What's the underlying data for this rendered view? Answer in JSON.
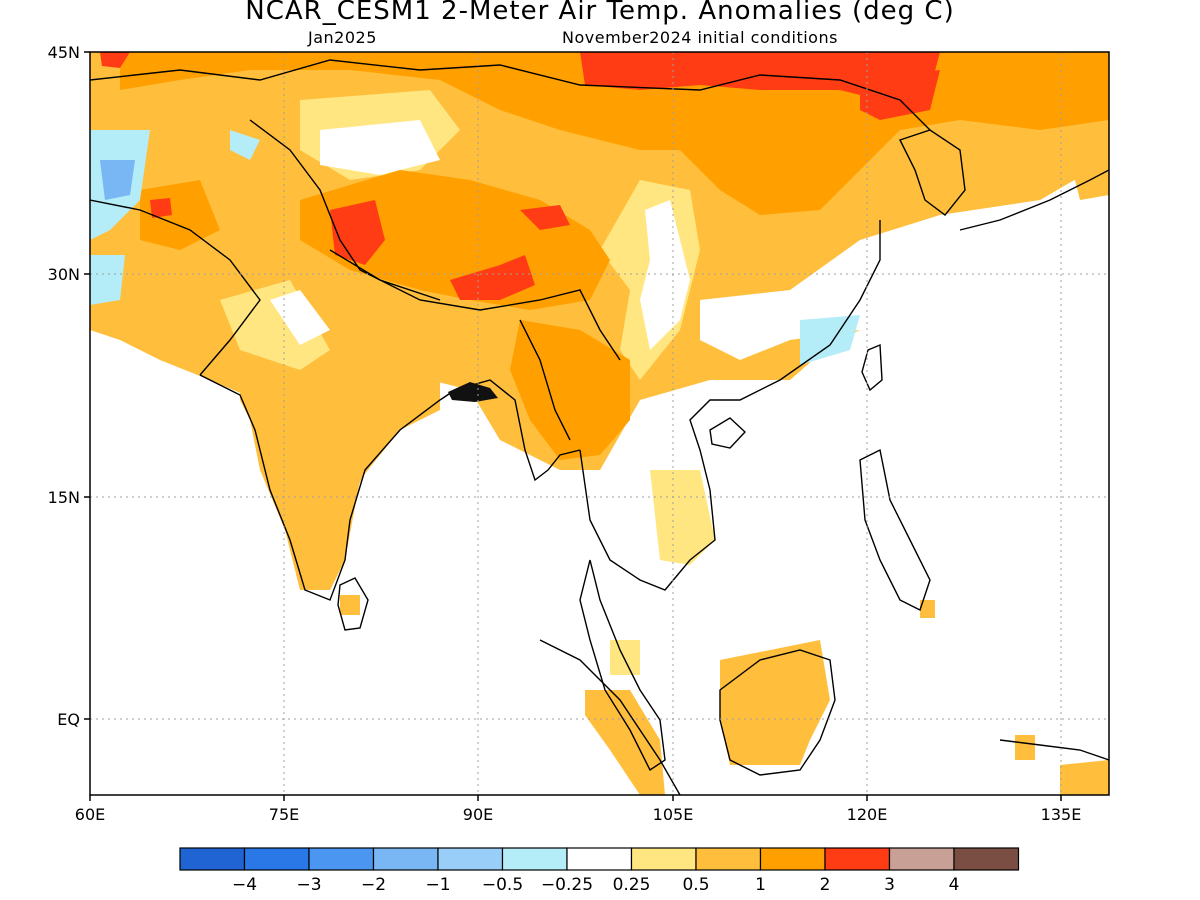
{
  "title": "NCAR_CESM1 2-Meter Air Temp. Anomalies (deg C)",
  "valid_month": "Jan2025",
  "init_label": "November2024 initial conditions",
  "lat_labels": [
    "45N",
    "30N",
    "15N",
    "EQ"
  ],
  "lon_labels": [
    "60E",
    "75E",
    "90E",
    "105E",
    "120E",
    "135E"
  ],
  "colorbar": {
    "labels": [
      "-4",
      "-3",
      "-2",
      "-1",
      "-0.5",
      "-0.25",
      "0.25",
      "0.5",
      "1",
      "2",
      "3",
      "4"
    ],
    "colors": [
      "#1f64d2",
      "#2a78e8",
      "#4a96f0",
      "#78b6f4",
      "#98cef8",
      "#b4ecf8",
      "#ffffff",
      "#ffe680",
      "#ffbe3c",
      "#ffa000",
      "#ff3c14",
      "#c8a096",
      "#7a4e42"
    ]
  },
  "palette": {
    "warm_light": "#ffe680",
    "warm": "#ffbe3c",
    "warm_strong": "#ffa000",
    "hot": "#ff3c14",
    "cool_light": "#b4ecf8",
    "cool": "#98cef8",
    "cool_strong": "#78b6f4",
    "coast": "#000000"
  }
}
